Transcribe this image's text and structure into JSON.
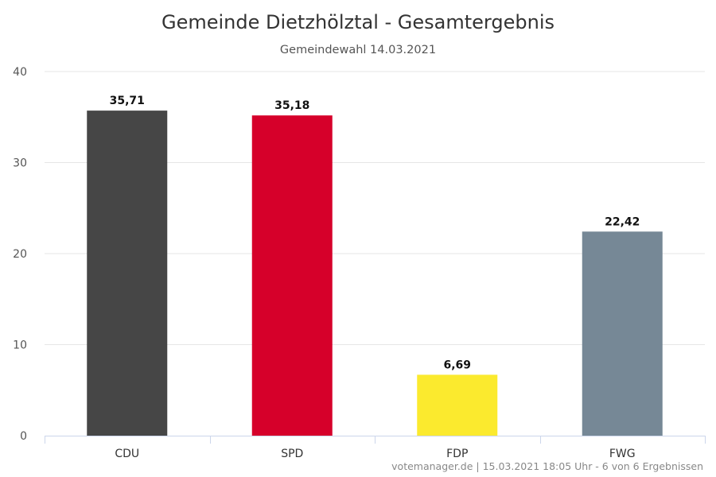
{
  "chart_data": {
    "type": "bar",
    "title": "Gemeinde Dietzhölztal - Gesamtergebnis",
    "subtitle": "Gemeindewahl 14.03.2021",
    "categories": [
      "CDU",
      "SPD",
      "FDP",
      "FWG"
    ],
    "values": [
      35.71,
      35.18,
      6.69,
      22.42
    ],
    "value_labels": [
      "35,71",
      "35,18",
      "6,69",
      "22,42"
    ],
    "colors": [
      "#464646",
      "#d6002a",
      "#fbea2e",
      "#768896"
    ],
    "yticks": [
      "0",
      "10",
      "20",
      "30",
      "40"
    ],
    "ylim": [
      0,
      40
    ],
    "grid": true,
    "legend": "none",
    "xlabel": "",
    "ylabel": ""
  },
  "credits": "votemanager.de | 15.03.2021 18:05 Uhr - 6 von 6 Ergebnissen"
}
